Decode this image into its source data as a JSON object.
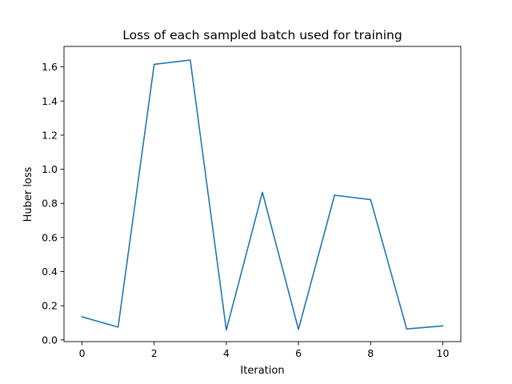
{
  "chart_data": {
    "type": "line",
    "title": "Loss of each sampled batch used for training",
    "xlabel": "Iteration",
    "ylabel": "Huber loss",
    "xlim": [
      -0.5,
      10.5
    ],
    "ylim": [
      -0.01,
      1.72
    ],
    "xticks": [
      0,
      2,
      4,
      6,
      8,
      10
    ],
    "xtick_labels": [
      "0",
      "2",
      "4",
      "6",
      "8",
      "10"
    ],
    "yticks": [
      0.0,
      0.2,
      0.4,
      0.6,
      0.8,
      1.0,
      1.2,
      1.4,
      1.6
    ],
    "ytick_labels": [
      "0.0",
      "0.2",
      "0.4",
      "0.6",
      "0.8",
      "1.0",
      "1.2",
      "1.4",
      "1.6"
    ],
    "grid": false,
    "series": [
      {
        "color": "#1f77b4",
        "x": [
          0,
          1,
          2,
          3,
          4,
          5,
          6,
          7,
          8,
          9,
          10
        ],
        "values": [
          0.135,
          0.075,
          1.615,
          1.64,
          0.058,
          0.865,
          0.062,
          0.848,
          0.822,
          0.064,
          0.082
        ]
      }
    ]
  }
}
